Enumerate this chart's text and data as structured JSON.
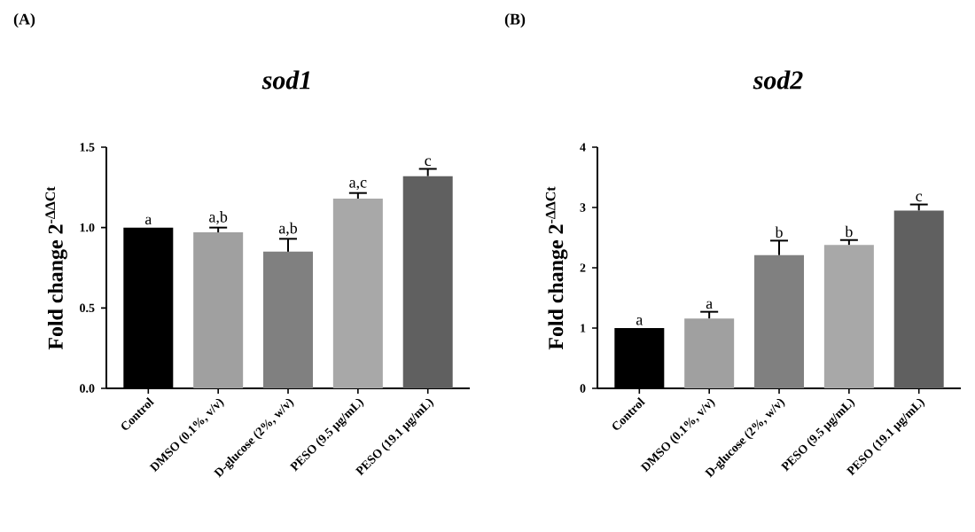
{
  "chart_data": [
    {
      "type": "bar",
      "title": "sod1",
      "ylabel": "Fold change 2$^{-ΔΔCt}$",
      "categories": [
        "Control",
        "DMSO (0.1%, v/v)",
        "D-glucose (2%, w/v)",
        "PESO (9.5 μg/mL)",
        "PESO (19.1 μg/mL)"
      ],
      "values": [
        1.0,
        0.97,
        0.85,
        1.18,
        1.32
      ],
      "errors": [
        null,
        0.03,
        0.08,
        0.035,
        0.045
      ],
      "colors": [
        "#000000",
        "#a0a0a0",
        "#808080",
        "#a8a8a8",
        "#606060"
      ],
      "ylim": [
        0,
        1.5
      ],
      "yticks": [
        {
          "value": 0,
          "label": "0.0"
        },
        0.5,
        {
          "value": 1,
          "label": "1.0"
        },
        1.5
      ],
      "grid": false,
      "annotations": [
        "(A)",
        {
          "text": "a",
          "x": "Control",
          "y": 1.0
        },
        {
          "text": "a,b",
          "x": "DMSO (0.1%, v/v)",
          "y": 1.0
        },
        {
          "text": "a,b",
          "x": "D-glucose (2%, w/v)",
          "y": 0.93
        },
        {
          "text": "a,c",
          "x": "PESO (9.5 μg/mL)",
          "y": 1.215
        },
        {
          "text": "c",
          "x": "PESO (19.1 μg/mL)",
          "y": 1.365
        }
      ]
    },
    {
      "type": "bar",
      "title": "sod2",
      "ylabel": "Fold change 2$^{-ΔΔCt}$",
      "categories": [
        "Control",
        "DMSO (0.1%, v/v)",
        "D-glucose (2%, w/v)",
        "PESO (9.5 μg/mL)",
        "PESO (19.1 μg/mL)"
      ],
      "values": [
        1.0,
        1.16,
        2.21,
        2.38,
        2.95
      ],
      "errors": [
        null,
        0.11,
        0.24,
        0.08,
        0.1
      ],
      "colors": [
        "#000000",
        "#a0a0a0",
        "#808080",
        "#a8a8a8",
        "#606060"
      ],
      "ylim": [
        0,
        4
      ],
      "yticks": [
        0,
        1,
        2,
        3,
        4
      ],
      "grid": false,
      "annotations": [
        "(B)",
        {
          "text": "a",
          "x": "Control",
          "y": 1.0
        },
        {
          "text": "a",
          "x": "DMSO (0.1%, v/v)",
          "y": 1.27
        },
        {
          "text": "b",
          "x": "D-glucose (2%, w/v)",
          "y": 2.45
        },
        {
          "text": "b",
          "x": "PESO (9.5 μg/mL)",
          "y": 2.46
        },
        {
          "text": "c",
          "x": "PESO (19.1 μg/mL)",
          "y": 3.05
        }
      ]
    }
  ]
}
